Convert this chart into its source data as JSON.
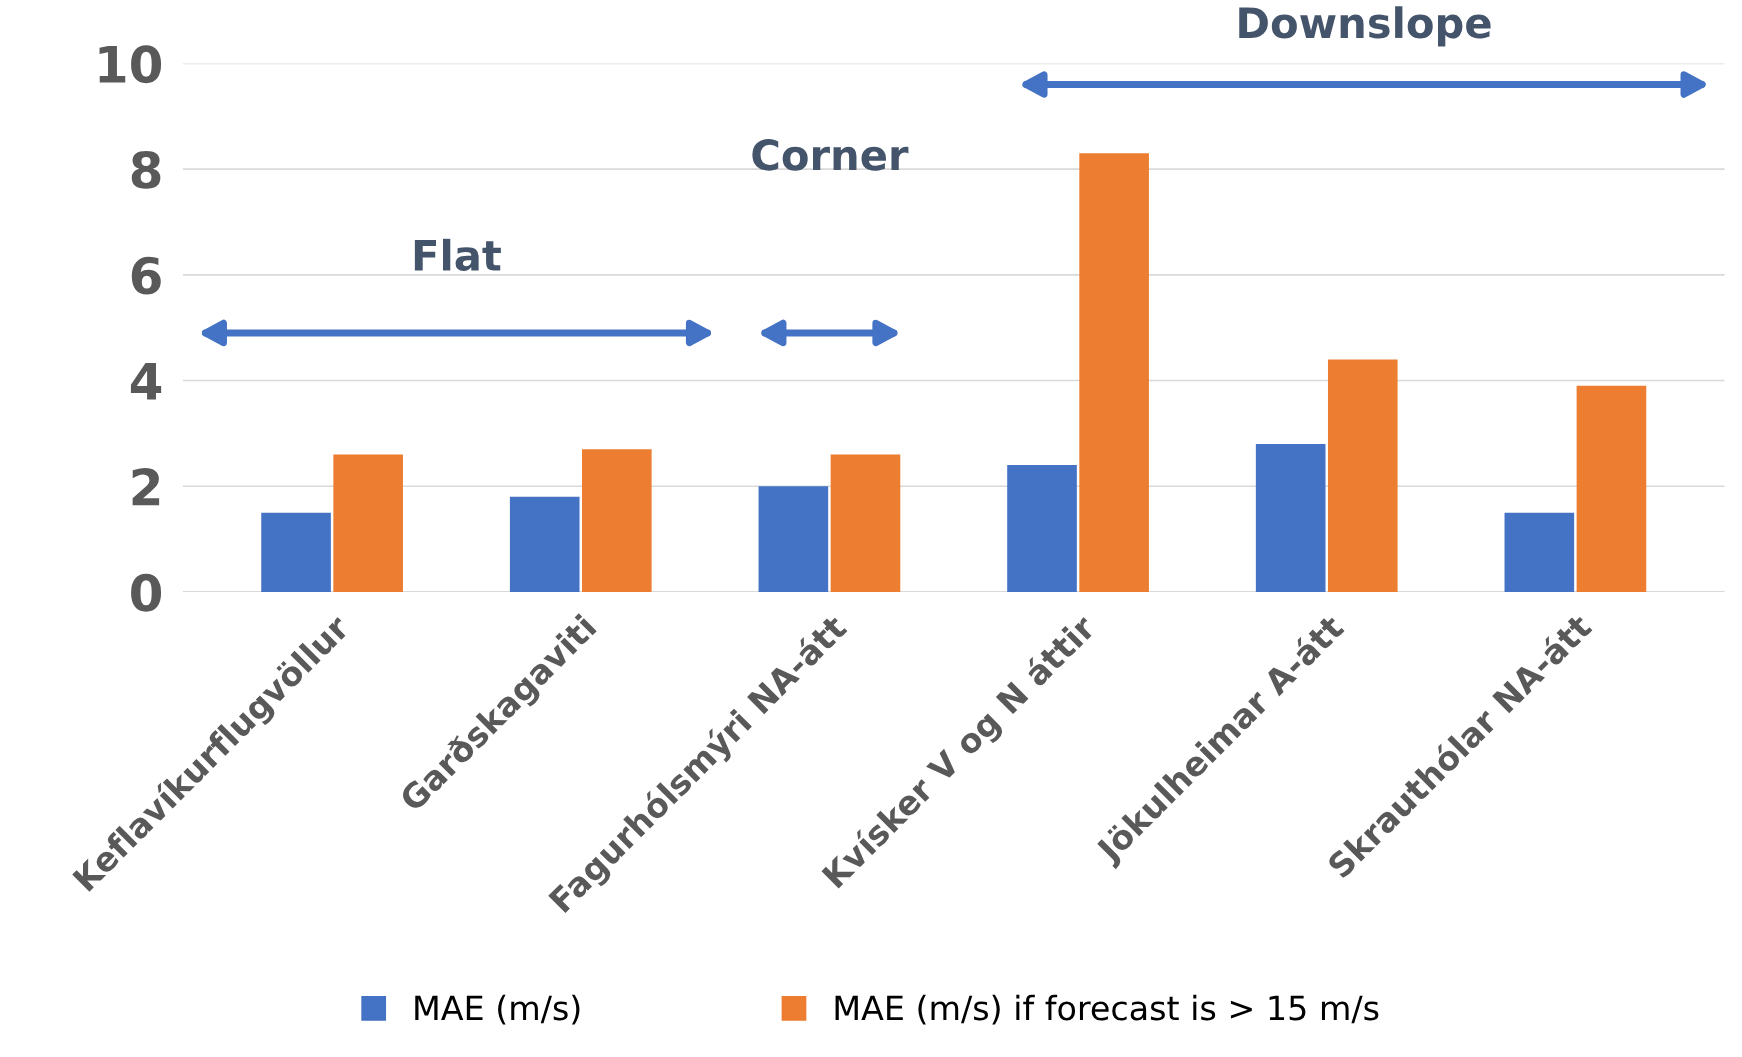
{
  "chart_data": {
    "type": "bar",
    "categories": [
      "Keflavíkurflugvöllur",
      "Garðskagaviti",
      "Fagurhólsmýri NA-átt",
      "Kvísker V og N áttir",
      "Jökulheimar A-átt",
      "Skrauthólar NA-átt"
    ],
    "series": [
      {
        "name": "MAE (m/s)",
        "color": "#4472c4",
        "values": [
          1.5,
          1.8,
          2.0,
          2.4,
          2.8,
          1.5
        ]
      },
      {
        "name": "MAE (m/s) if forecast is > 15 m/s",
        "color": "#ed7d31",
        "values": [
          2.6,
          2.7,
          2.6,
          8.3,
          4.4,
          3.9
        ]
      }
    ],
    "ylim": [
      0,
      10
    ],
    "yticks": [
      0,
      2,
      4,
      6,
      8,
      10
    ],
    "grid": "y",
    "legend": "bottom",
    "annotations": [
      "Flat",
      "Corner",
      "Downslope"
    ]
  }
}
